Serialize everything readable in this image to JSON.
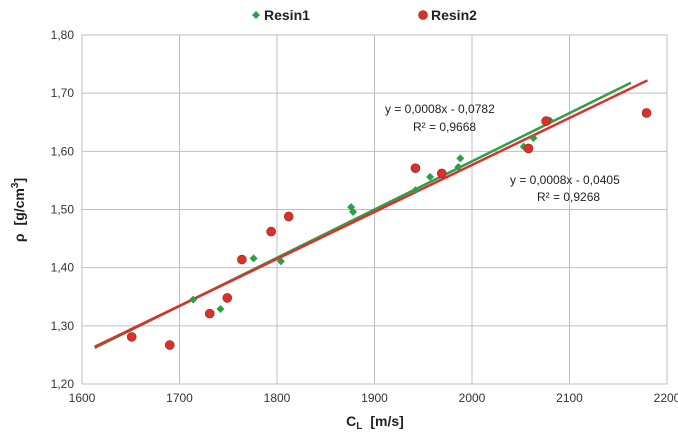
{
  "chart_data": {
    "type": "scatter",
    "xlabel_main": "C",
    "xlabel_sub": "L",
    "xlabel_unit": "[m/s]",
    "ylabel_main": "ρ",
    "ylabel_unit_pre": "[g/cm",
    "ylabel_unit_sup": "3",
    "ylabel_unit_post": "]",
    "xlim": [
      1600,
      2200
    ],
    "ylim": [
      1.2,
      1.8
    ],
    "x_ticks": [
      1600,
      1700,
      1800,
      1900,
      2000,
      2100,
      2200
    ],
    "x_tick_labels": [
      "1600",
      "1700",
      "1800",
      "1900",
      "2000",
      "2100",
      "2200"
    ],
    "y_ticks": [
      1.2,
      1.3,
      1.4,
      1.5,
      1.6,
      1.7,
      1.8
    ],
    "y_tick_labels": [
      "1,20",
      "1,30",
      "1,40",
      "1,50",
      "1,60",
      "1,70",
      "1,80"
    ],
    "grid": true,
    "legend_position": "top-center",
    "series": [
      {
        "name": "Resin1",
        "marker": "diamond",
        "color": "#2e9e47",
        "points": [
          {
            "x": 1714,
            "y": 1.345
          },
          {
            "x": 1742,
            "y": 1.329
          },
          {
            "x": 1776,
            "y": 1.416
          },
          {
            "x": 1804,
            "y": 1.411
          },
          {
            "x": 1876,
            "y": 1.504
          },
          {
            "x": 1878,
            "y": 1.496
          },
          {
            "x": 1942,
            "y": 1.533
          },
          {
            "x": 1957,
            "y": 1.556
          },
          {
            "x": 1986,
            "y": 1.573
          },
          {
            "x": 1988,
            "y": 1.588
          },
          {
            "x": 2053,
            "y": 1.608
          },
          {
            "x": 2063,
            "y": 1.623
          },
          {
            "x": 2080,
            "y": 1.653
          }
        ],
        "trendline": {
          "x": [
            1613,
            2163
          ],
          "y": [
            1.262,
            1.718
          ]
        },
        "equation": "y = 0,0008x - 0,0782",
        "r2": "R² = 0,9668"
      },
      {
        "name": "Resin2",
        "marker": "circle",
        "color": "#d9322b",
        "points": [
          {
            "x": 1651,
            "y": 1.281
          },
          {
            "x": 1690,
            "y": 1.267
          },
          {
            "x": 1731,
            "y": 1.321
          },
          {
            "x": 1749,
            "y": 1.348
          },
          {
            "x": 1764,
            "y": 1.414
          },
          {
            "x": 1794,
            "y": 1.462
          },
          {
            "x": 1812,
            "y": 1.488
          },
          {
            "x": 1942,
            "y": 1.571
          },
          {
            "x": 1969,
            "y": 1.562
          },
          {
            "x": 2058,
            "y": 1.605
          },
          {
            "x": 2076,
            "y": 1.652
          },
          {
            "x": 2179,
            "y": 1.666
          }
        ],
        "trendline": {
          "x": [
            1613,
            2180
          ],
          "y": [
            1.264,
            1.722
          ]
        },
        "equation": "y = 0,0008x - 0,0405",
        "r2": "R² = 0,9268"
      }
    ]
  }
}
